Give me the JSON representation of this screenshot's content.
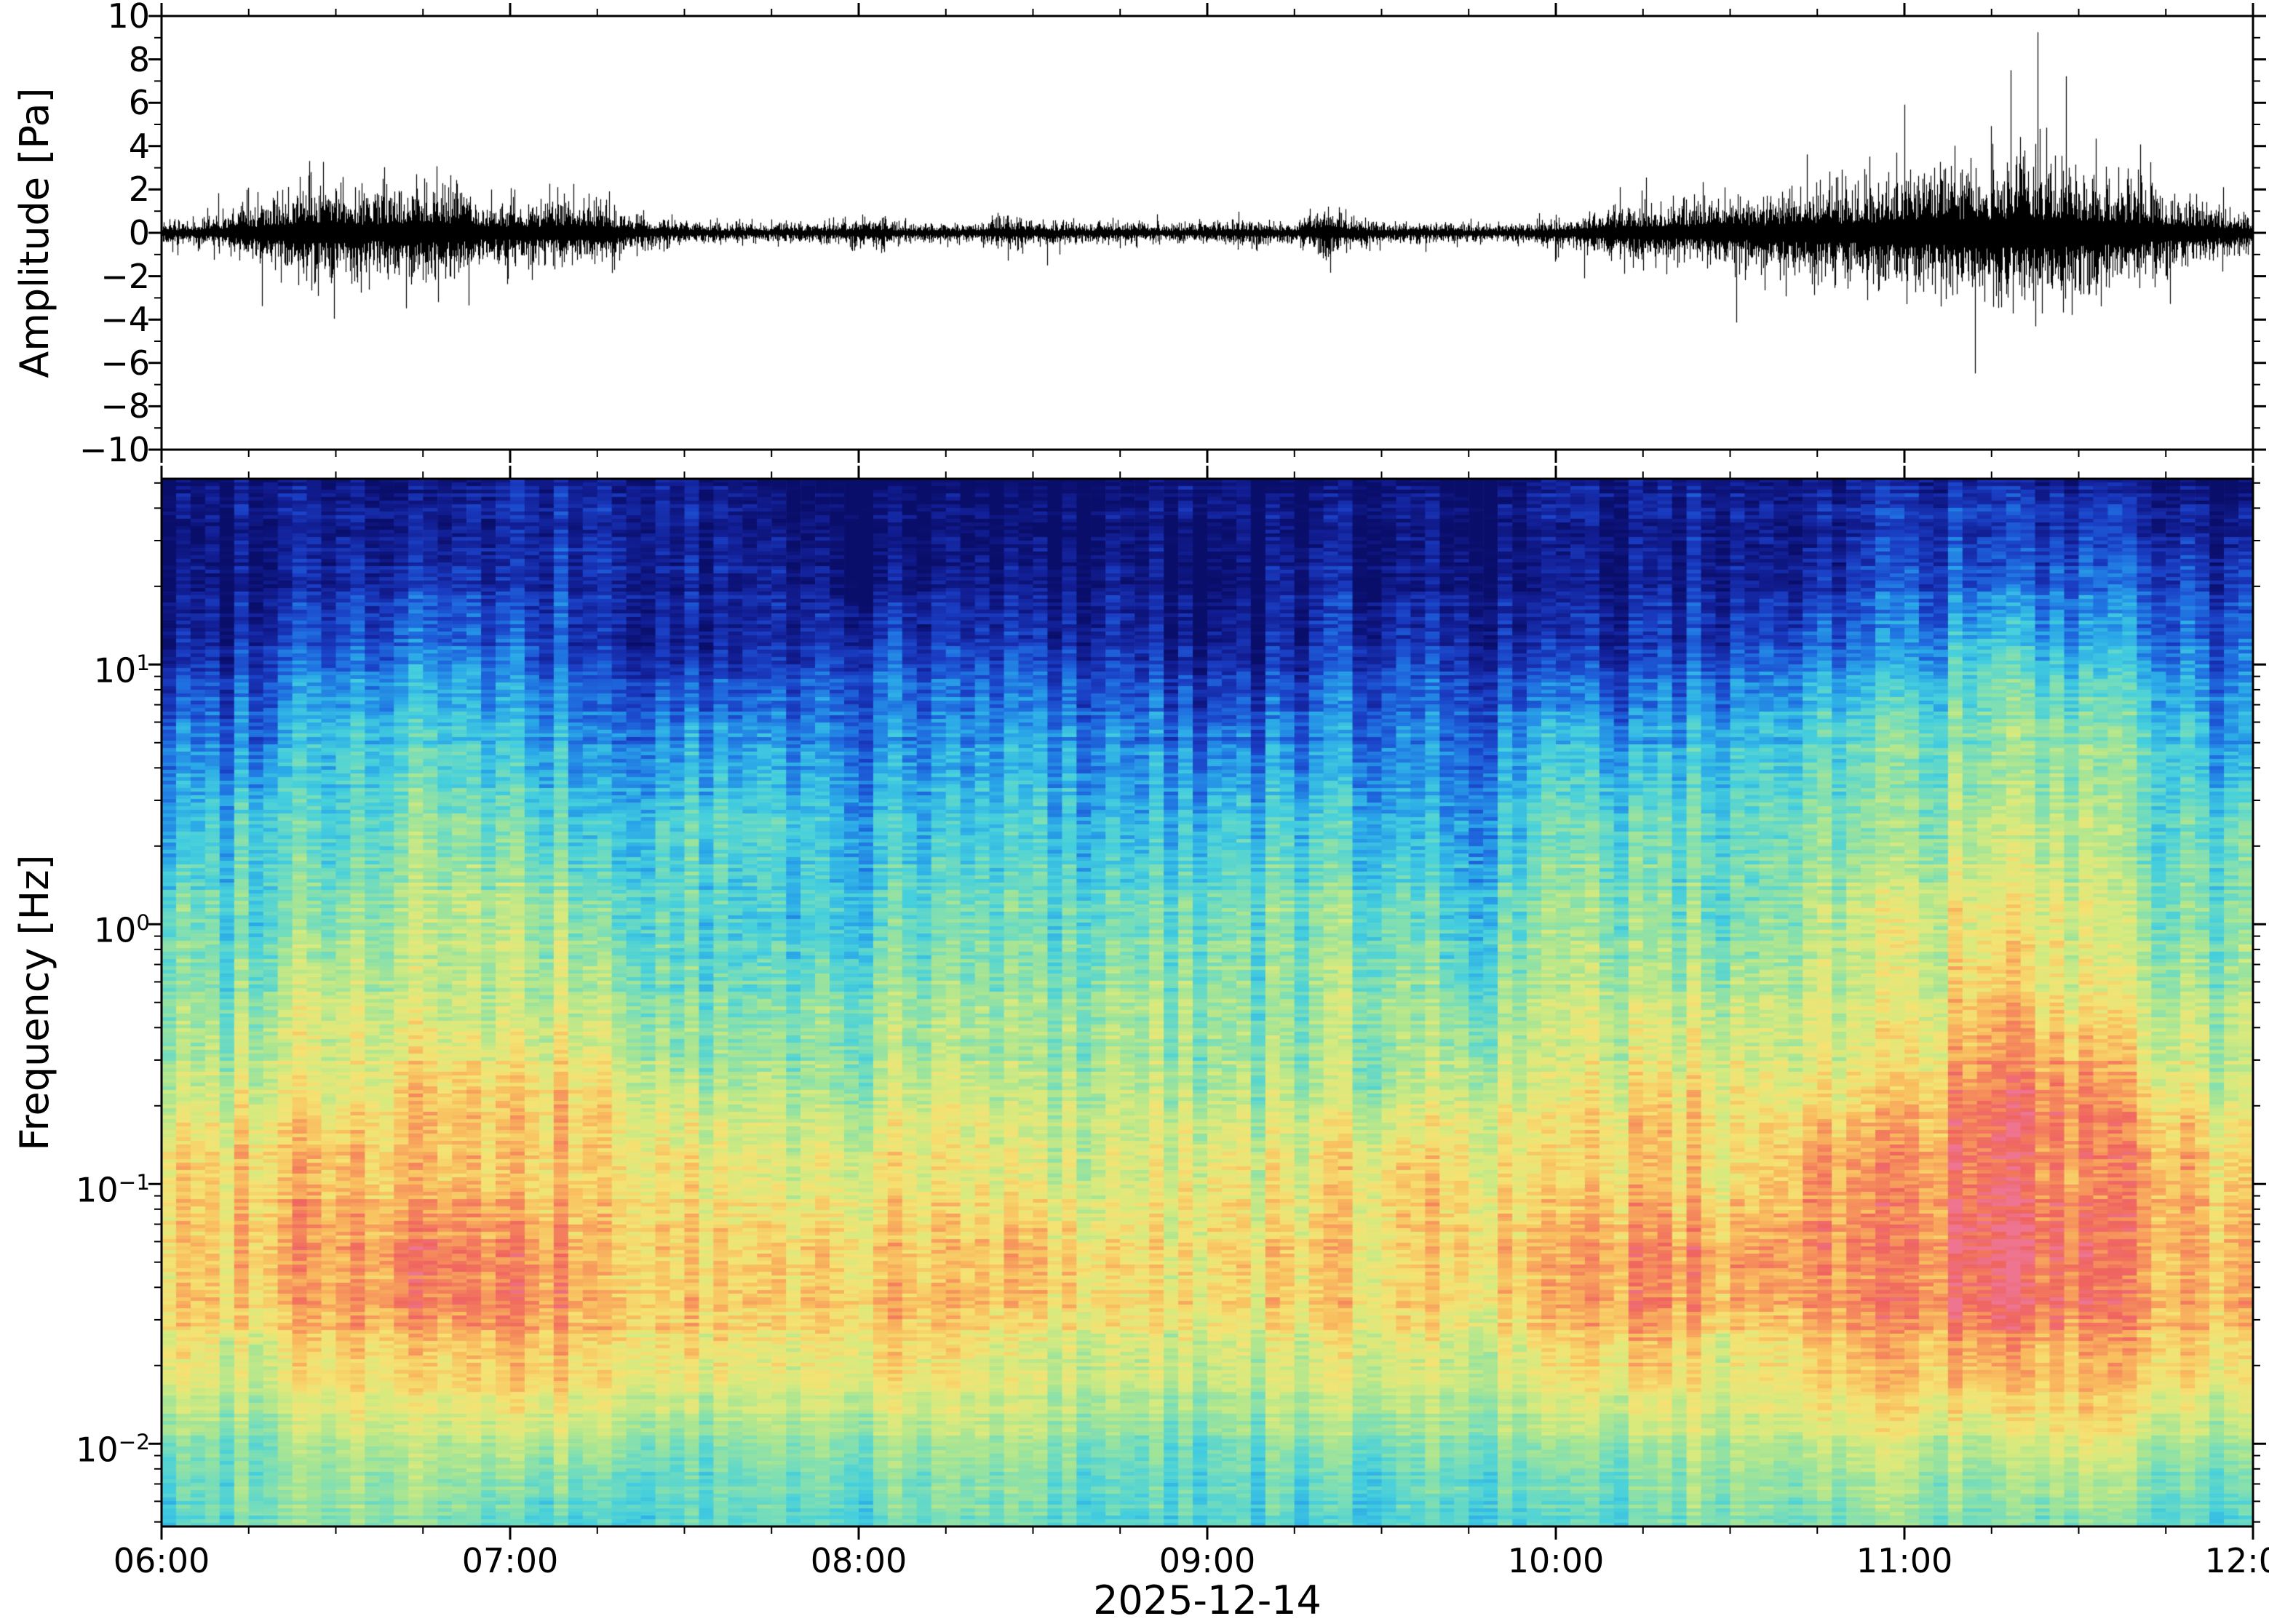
{
  "figure": {
    "date_label": "2025-12-14",
    "background": "#ffffff",
    "frame_color": "#000000",
    "x_axis": {
      "start_hour": 6,
      "end_hour": 12,
      "tick_labels": [
        "06:00",
        "07:00",
        "08:00",
        "09:00",
        "10:00",
        "11:00",
        "12:00"
      ],
      "minor_tick_minutes": 15
    }
  },
  "chart_data": [
    {
      "type": "line",
      "name": "infrasound-waveform",
      "ylabel": "Amplitude [Pa]",
      "ylim": [
        -10,
        10
      ],
      "ytick_step": 2,
      "line_color": "#000000",
      "x_start_hour": 6,
      "x_end_hour": 12,
      "envelope_interval_minutes": 5,
      "envelope_pa": [
        0.35,
        0.4,
        0.5,
        0.8,
        1.1,
        1.5,
        1.4,
        1.2,
        1.3,
        1.5,
        1.3,
        1.0,
        0.9,
        0.85,
        1.1,
        0.9,
        0.6,
        0.45,
        0.35,
        0.3,
        0.28,
        0.26,
        0.3,
        0.32,
        0.45,
        0.38,
        0.3,
        0.27,
        0.26,
        0.55,
        0.4,
        0.32,
        0.3,
        0.35,
        0.3,
        0.27,
        0.32,
        0.4,
        0.36,
        0.3,
        0.75,
        0.45,
        0.32,
        0.3,
        0.3,
        0.27,
        0.26,
        0.3,
        0.4,
        0.6,
        0.8,
        0.9,
        0.85,
        0.9,
        1.0,
        1.1,
        1.2,
        1.5,
        1.4,
        1.6,
        1.8,
        1.7,
        1.9,
        2.0,
        2.2,
        2.0,
        1.8,
        1.7,
        1.5,
        1.2,
        0.9,
        0.7,
        0.55
      ]
    },
    {
      "type": "heatmap",
      "name": "spectrogram",
      "ylabel": "Frequency [Hz]",
      "yscale": "log",
      "ylim_hz": [
        0.0048,
        51.9
      ],
      "ytick_exponents": [
        1,
        0,
        -1,
        -2
      ],
      "time_modulation_source": "waveform_envelope",
      "colormap_stops": [
        {
          "t": 0.0,
          "c": "#0a0e6b"
        },
        {
          "t": 0.08,
          "c": "#121f96"
        },
        {
          "t": 0.16,
          "c": "#1a3ec4"
        },
        {
          "t": 0.24,
          "c": "#1f6ee0"
        },
        {
          "t": 0.32,
          "c": "#2aa8e8"
        },
        {
          "t": 0.4,
          "c": "#45cfdd"
        },
        {
          "t": 0.48,
          "c": "#76ddba"
        },
        {
          "t": 0.56,
          "c": "#a8e593"
        },
        {
          "t": 0.64,
          "c": "#d7ea7e"
        },
        {
          "t": 0.72,
          "c": "#f5e273"
        },
        {
          "t": 0.8,
          "c": "#f9bc5e"
        },
        {
          "t": 0.88,
          "c": "#f58a5c"
        },
        {
          "t": 0.95,
          "c": "#ef645f"
        },
        {
          "t": 1.0,
          "c": "#ee7490"
        }
      ],
      "power_vs_frequency": [
        {
          "hz": 50,
          "v": 0.03
        },
        {
          "hz": 25,
          "v": 0.07
        },
        {
          "hz": 15,
          "v": 0.13
        },
        {
          "hz": 8,
          "v": 0.25
        },
        {
          "hz": 4,
          "v": 0.36
        },
        {
          "hz": 2,
          "v": 0.44
        },
        {
          "hz": 1,
          "v": 0.5
        },
        {
          "hz": 0.5,
          "v": 0.57
        },
        {
          "hz": 0.25,
          "v": 0.65
        },
        {
          "hz": 0.12,
          "v": 0.74
        },
        {
          "hz": 0.06,
          "v": 0.8
        },
        {
          "hz": 0.035,
          "v": 0.8
        },
        {
          "hz": 0.02,
          "v": 0.7
        },
        {
          "hz": 0.012,
          "v": 0.6
        },
        {
          "hz": 0.008,
          "v": 0.52
        },
        {
          "hz": 0.005,
          "v": 0.46
        }
      ]
    }
  ]
}
